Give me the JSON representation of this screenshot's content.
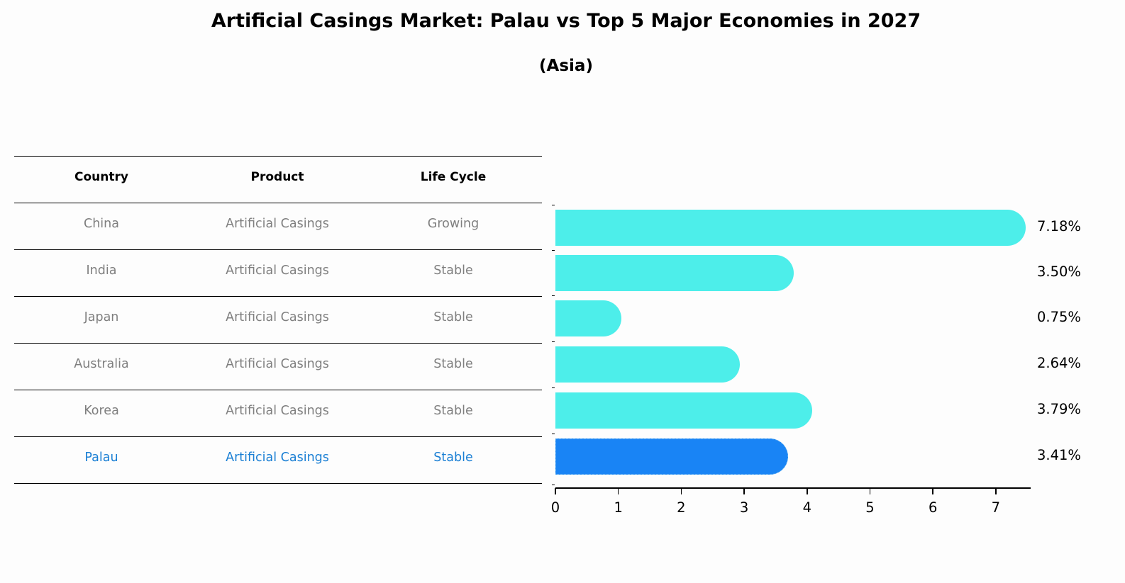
{
  "title": "Artificial Casings Market: Palau vs Top 5 Major Economies in 2027",
  "subtitle": "(Asia)",
  "table": {
    "headers": [
      "Country",
      "Product",
      "Life Cycle"
    ],
    "rows": [
      {
        "country": "China",
        "product": "Artificial Casings",
        "life_cycle": "Growing",
        "highlight": false
      },
      {
        "country": "India",
        "product": "Artificial Casings",
        "life_cycle": "Stable",
        "highlight": false
      },
      {
        "country": "Japan",
        "product": "Artificial Casings",
        "life_cycle": "Stable",
        "highlight": false
      },
      {
        "country": "Australia",
        "product": "Artificial Casings",
        "life_cycle": "Stable",
        "highlight": false
      },
      {
        "country": "Korea",
        "product": "Artificial Casings",
        "life_cycle": "Stable",
        "highlight": false
      },
      {
        "country": "Palau",
        "product": "Artificial Casings",
        "life_cycle": "Stable",
        "highlight": true
      }
    ]
  },
  "colors": {
    "bar": "#4deeea",
    "highlight_bar": "#1984f5",
    "highlight_text": "#1a7fd4",
    "muted_text": "#7f7f7f"
  },
  "chart_data": {
    "type": "bar",
    "orientation": "horizontal",
    "title": "Artificial Casings Market: Palau vs Top 5 Major Economies in 2027",
    "subtitle": "(Asia)",
    "categories": [
      "China",
      "India",
      "Japan",
      "Australia",
      "Korea",
      "Palau"
    ],
    "values": [
      7.18,
      3.5,
      0.75,
      2.64,
      3.79,
      3.41
    ],
    "value_labels": [
      "7.18%",
      "3.50%",
      "0.75%",
      "2.64%",
      "3.79%",
      "3.41%"
    ],
    "highlight_category": "Palau",
    "xlabel": "",
    "ylabel": "",
    "xlim": [
      0,
      7.55
    ],
    "xticks": [
      0,
      1,
      2,
      3,
      4,
      5,
      6,
      7
    ],
    "grid": false,
    "legend": null
  }
}
